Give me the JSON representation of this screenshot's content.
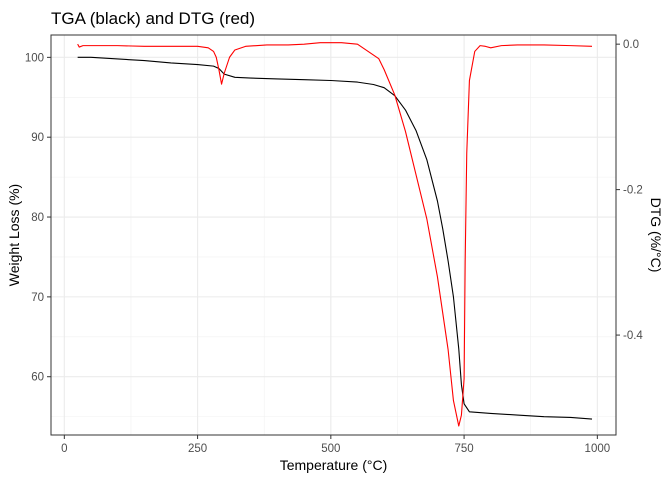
{
  "chart_data": {
    "type": "line",
    "title": "TGA (black) and DTG (red)",
    "xlabel": "Temperature (°C)",
    "ylabel": "Weight Loss (%)",
    "y2label": "DTG (%/°C)",
    "xlim": [
      -25,
      1035
    ],
    "ylim": [
      52.7,
      102.8
    ],
    "y2lim": [
      -0.5374,
      0.0126
    ],
    "xticks": [
      0,
      250,
      500,
      750,
      1000
    ],
    "yticks": [
      60,
      70,
      80,
      90,
      100
    ],
    "y2ticks": [
      0.0,
      -0.2,
      -0.4
    ],
    "x_tick_labels": [
      "0",
      "250",
      "500",
      "750",
      "1000"
    ],
    "y_tick_labels": [
      "60",
      "70",
      "80",
      "90",
      "100"
    ],
    "y2_tick_labels": [
      "0.0",
      "-0.2",
      "-0.4"
    ],
    "grid": true,
    "series": [
      {
        "axis": "left",
        "color": "#000000",
        "x": [
          25,
          50,
          100,
          150,
          200,
          250,
          280,
          290,
          300,
          320,
          350,
          400,
          450,
          500,
          550,
          580,
          600,
          620,
          640,
          660,
          680,
          700,
          710,
          720,
          730,
          740,
          745,
          750,
          760,
          800,
          850,
          900,
          950,
          990
        ],
        "y": [
          100.0,
          100.0,
          99.8,
          99.6,
          99.3,
          99.1,
          98.9,
          98.6,
          97.9,
          97.5,
          97.4,
          97.3,
          97.2,
          97.1,
          96.9,
          96.6,
          96.2,
          95.2,
          93.4,
          90.8,
          87.2,
          82.0,
          78.5,
          74.5,
          70.0,
          63.5,
          59.0,
          56.6,
          55.6,
          55.4,
          55.2,
          55.0,
          54.9,
          54.7
        ]
      },
      {
        "axis": "right",
        "color": "#ff0000",
        "x": [
          25,
          28,
          35,
          60,
          100,
          150,
          200,
          250,
          270,
          280,
          285,
          290,
          295,
          300,
          310,
          320,
          340,
          380,
          420,
          450,
          480,
          520,
          550,
          570,
          590,
          600,
          620,
          640,
          660,
          680,
          700,
          710,
          720,
          730,
          740,
          745,
          750,
          752,
          755,
          760,
          770,
          780,
          790,
          800,
          820,
          850,
          900,
          950,
          990
        ],
        "y": [
          0.0,
          -0.004,
          -0.002,
          -0.002,
          -0.002,
          -0.003,
          -0.003,
          -0.003,
          -0.005,
          -0.01,
          -0.018,
          -0.035,
          -0.055,
          -0.04,
          -0.018,
          -0.008,
          -0.003,
          -0.001,
          -0.001,
          0.0,
          0.002,
          0.002,
          0.0,
          -0.01,
          -0.02,
          -0.035,
          -0.07,
          -0.12,
          -0.18,
          -0.24,
          -0.32,
          -0.37,
          -0.42,
          -0.49,
          -0.525,
          -0.51,
          -0.46,
          -0.3,
          -0.15,
          -0.05,
          -0.01,
          -0.002,
          -0.003,
          -0.005,
          -0.002,
          -0.001,
          -0.001,
          -0.002,
          -0.003
        ]
      }
    ]
  }
}
